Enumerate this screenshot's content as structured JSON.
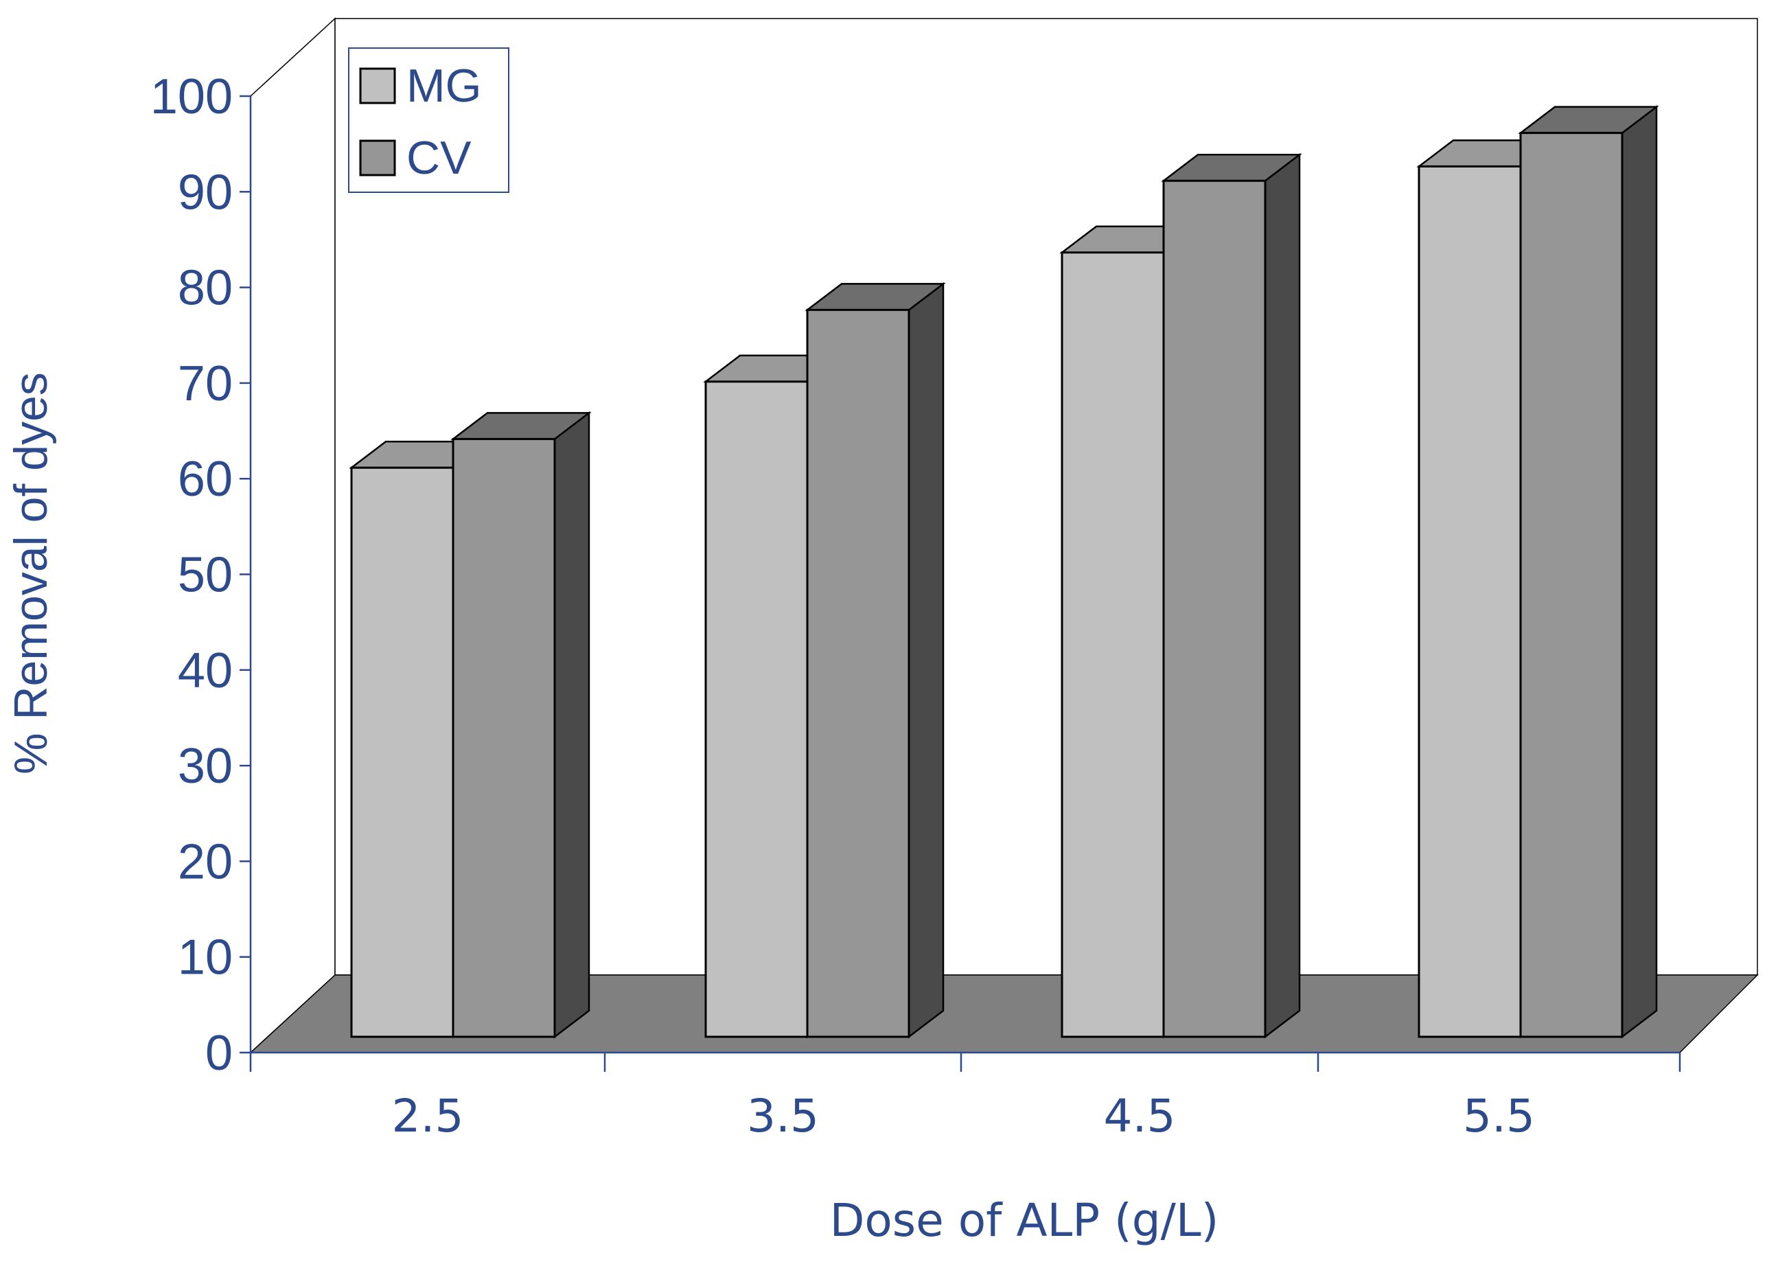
{
  "chart_data": {
    "type": "bar",
    "style": "3d-clustered",
    "title": "",
    "xlabel": "Dose of ALP (g/L)",
    "ylabel": "% Removal of dyes",
    "categories": [
      "2.5",
      "3.5",
      "4.5",
      "5.5"
    ],
    "series": [
      {
        "name": "MG",
        "values": [
          59.5,
          68.5,
          82,
          91
        ]
      },
      {
        "name": "CV",
        "values": [
          62.5,
          76,
          89.5,
          94.5
        ]
      }
    ],
    "ylim": [
      0,
      100
    ],
    "yticks": [
      "0",
      "10",
      "20",
      "30",
      "40",
      "50",
      "60",
      "70",
      "80",
      "90",
      "100"
    ],
    "legend_position": "top-left",
    "grid": false
  },
  "colors": {
    "text": "#2c4a8c",
    "mg_front": "#c0c0c0",
    "mg_top": "#9a9a9a",
    "cv_front": "#969696",
    "cv_top": "#6e6e6e",
    "bar_side": "#4a4a4a",
    "floor": "#808080",
    "outline": "#000000",
    "legend_border": "#2c4a8c"
  }
}
